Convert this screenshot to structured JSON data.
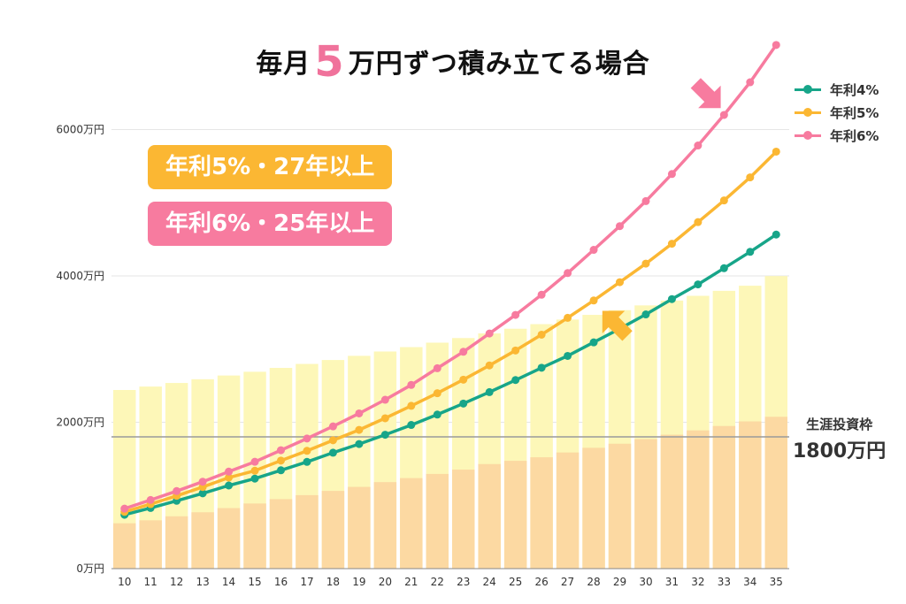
{
  "title": {
    "prefix": "毎月",
    "amount": "5",
    "suffix": "万円ずつ積み立てる場合"
  },
  "callouts": [
    {
      "text": "年利5%・27年以上",
      "color": "#fbb733"
    },
    {
      "text": "年利6%・25年以上",
      "color": "#f77b9f"
    }
  ],
  "lifetime_limit": {
    "label": "生涯投資枠",
    "value_text": "1800万円",
    "value": 1800
  },
  "chart_data": {
    "type": "line",
    "title": "毎月5万円ずつ積み立てる場合",
    "x": [
      10,
      11,
      12,
      13,
      14,
      15,
      16,
      17,
      18,
      19,
      20,
      21,
      22,
      23,
      24,
      25,
      26,
      27,
      28,
      29,
      30,
      31,
      32,
      33,
      34,
      35
    ],
    "y_ticks": [
      {
        "value": 0,
        "label": "0万円"
      },
      {
        "value": 2000,
        "label": "2000万円"
      },
      {
        "value": 4000,
        "label": "4000万円"
      },
      {
        "value": 6000,
        "label": "6000万円"
      }
    ],
    "ylim": [
      0,
      6900
    ],
    "grid": true,
    "legend_position": "top-right",
    "series": [
      {
        "name": "年利4%",
        "color": "#17a589",
        "values": [
          736,
          829,
          927,
          1029,
          1136,
          1230,
          1344,
          1459,
          1584,
          1703,
          1830,
          1963,
          2105,
          2256,
          2412,
          2577,
          2745,
          2907,
          3092,
          3279,
          3474,
          3683,
          3884,
          4105,
          4329,
          4565
        ]
      },
      {
        "name": "年利5%",
        "color": "#fbb733",
        "values": [
          776,
          882,
          995,
          1115,
          1244,
          1338,
          1476,
          1610,
          1754,
          1896,
          2055,
          2225,
          2397,
          2582,
          2777,
          2981,
          3197,
          3427,
          3664,
          3914,
          4168,
          4440,
          4735,
          5031,
          5346,
          5698
        ]
      },
      {
        "name": "年利6%",
        "color": "#f77b9f",
        "values": [
          820,
          938,
          1060,
          1188,
          1326,
          1460,
          1618,
          1778,
          1944,
          2121,
          2308,
          2510,
          2738,
          2963,
          3213,
          3467,
          3743,
          4039,
          4356,
          4680,
          5022,
          5392,
          5782,
          6200,
          6646,
          7156
        ]
      }
    ],
    "bars_upper": [
      2441,
      2488,
      2537,
      2588,
      2639,
      2690,
      2743,
      2797,
      2851,
      2908,
      2967,
      3027,
      3088,
      3151,
      3214,
      3278,
      3341,
      3404,
      3468,
      3532,
      3597,
      3663,
      3728,
      3796,
      3866,
      3998
    ],
    "bars_lower": [
      620,
      660,
      715,
      770,
      827,
      890,
      950,
      1004,
      1062,
      1117,
      1182,
      1237,
      1294,
      1353,
      1429,
      1473,
      1522,
      1587,
      1651,
      1707,
      1770,
      1830,
      1889,
      1949,
      2012,
      2075
    ],
    "bars_upper_color": "#fdf7b8",
    "bars_lower_color": "#fcd9a2"
  }
}
